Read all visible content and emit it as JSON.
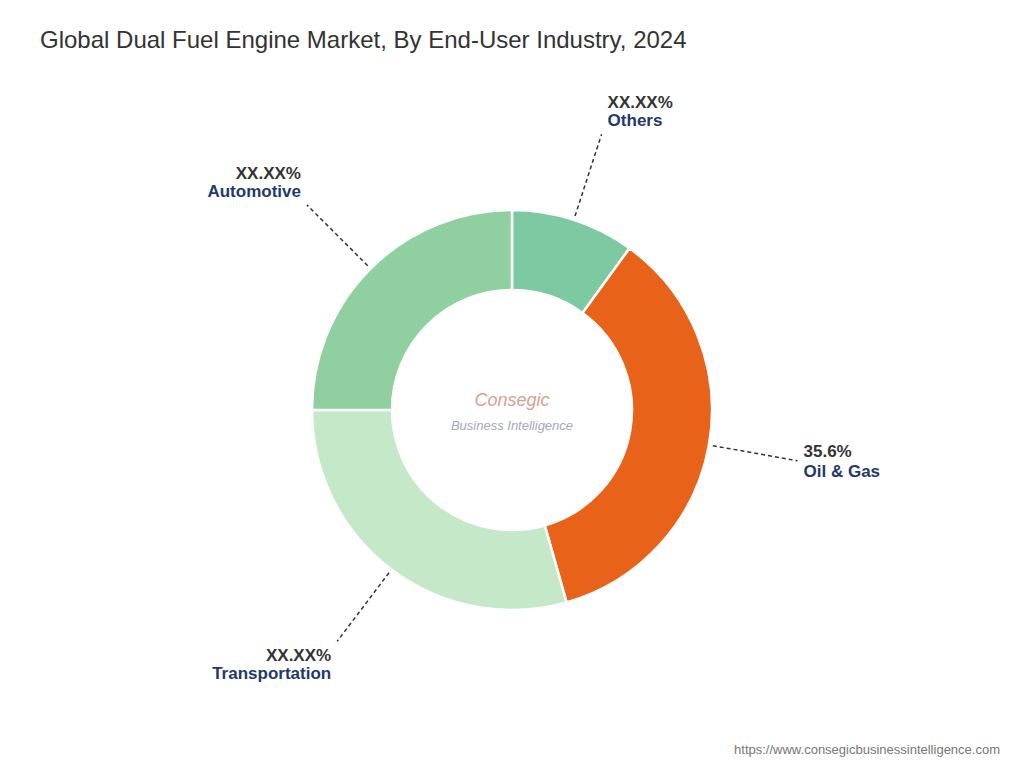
{
  "chart_data": {
    "type": "pie",
    "title": "Global Dual Fuel Engine Market, By End-User Industry, 2024",
    "categories": [
      "Others",
      "Oil & Gas",
      "Transportation",
      "Automotive"
    ],
    "values": [
      10.0,
      35.6,
      29.4,
      25.0
    ],
    "value_labels": [
      "XX.XX%",
      "35.6%",
      "XX.XX%",
      "XX.XX%"
    ],
    "colors": [
      "#7DC9A2",
      "#E8621A",
      "#C5E8C8",
      "#90CFA0"
    ],
    "data_labels": true,
    "annotations": [
      "Consegic",
      "Business Intelligence",
      "https://www.consegicbusinessintelligence.com"
    ]
  }
}
